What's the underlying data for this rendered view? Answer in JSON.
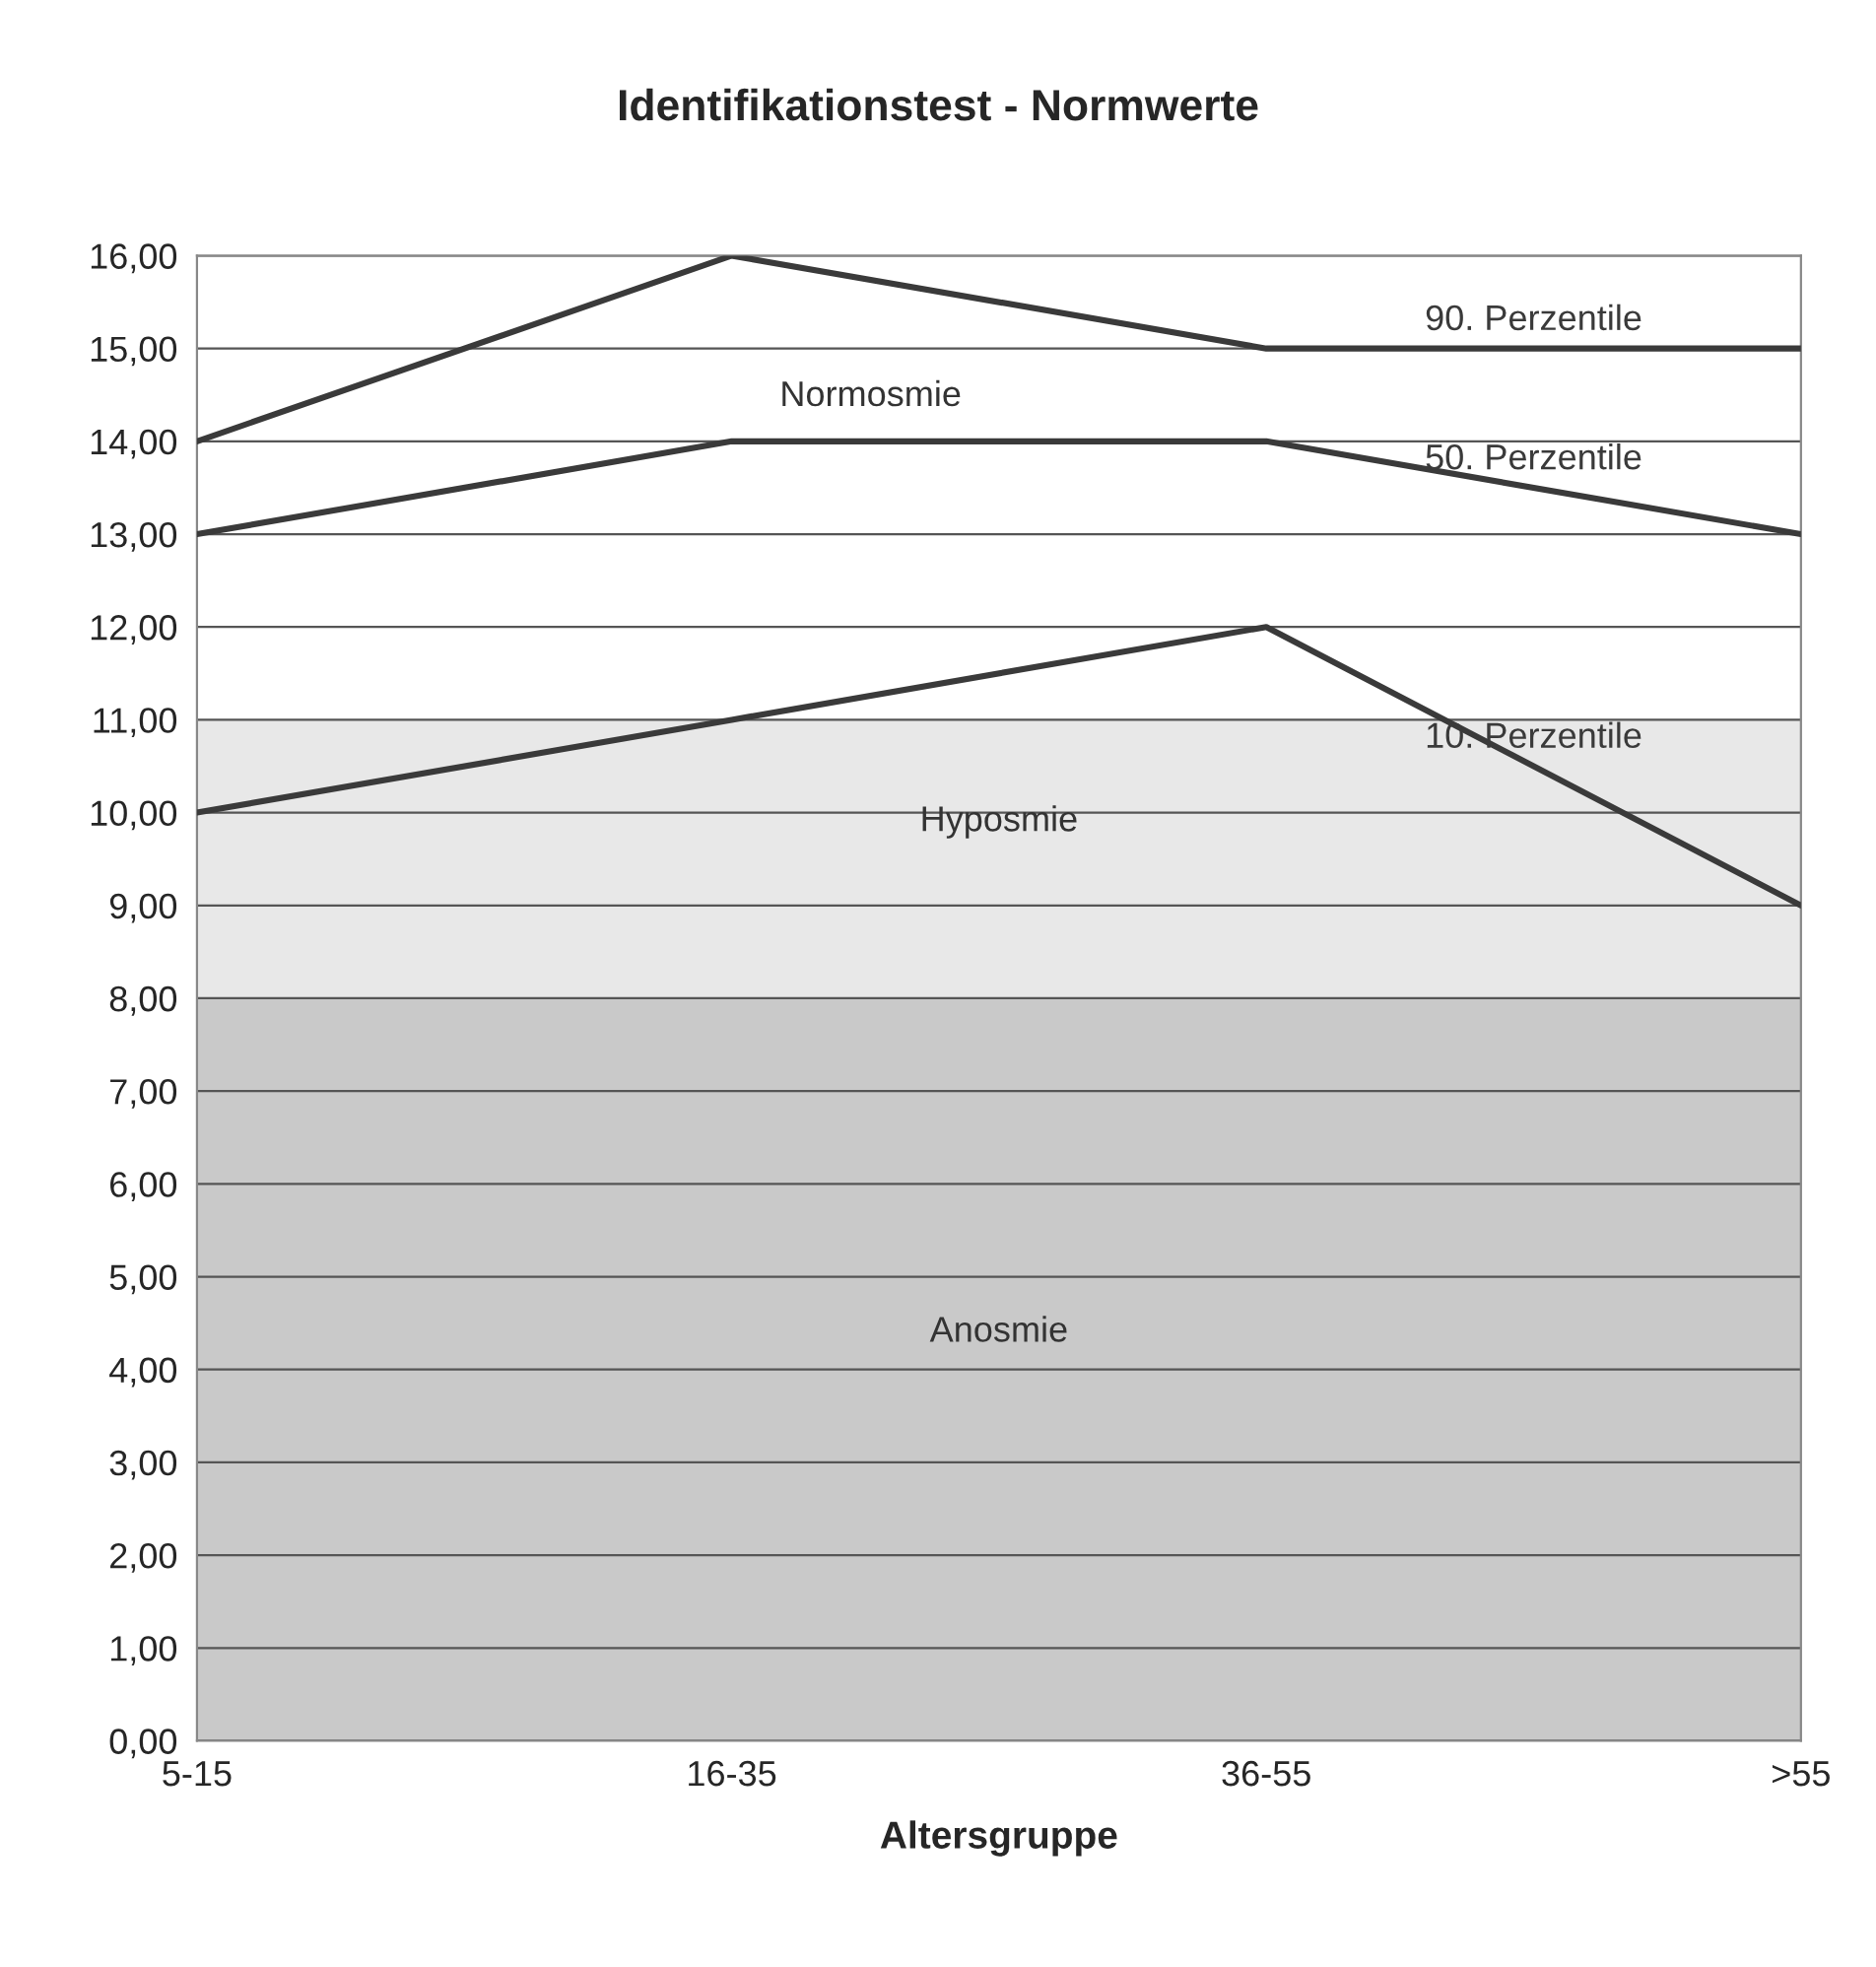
{
  "chart_data": {
    "type": "line",
    "title": "Identifikationstest - Normwerte",
    "xlabel": "Altersgruppe",
    "categories": [
      "5-15",
      "16-35",
      "36-55",
      ">55"
    ],
    "series": [
      {
        "name": "90. Perzentile",
        "color": "#3a3a3a",
        "values": [
          14,
          16,
          15,
          15
        ]
      },
      {
        "name": "50. Perzentile",
        "color": "#3a3a3a",
        "values": [
          13,
          14,
          14,
          13
        ]
      },
      {
        "name": "10. Perzentile",
        "color": "#3a3a3a",
        "values": [
          10,
          11,
          12,
          9
        ]
      }
    ],
    "bands": [
      {
        "axis": "y",
        "from": 0,
        "to": 8,
        "label": "Anosmie",
        "color": "#c9c9c9"
      },
      {
        "axis": "y",
        "from": 8,
        "to": 11,
        "label": "Hyposmie",
        "color": "#e8e8e8"
      }
    ],
    "annotations": [
      "Normosmie"
    ],
    "ylim": [
      0,
      16
    ],
    "yticks": [
      {
        "value": 0,
        "label": "0,00"
      },
      {
        "value": 1,
        "label": "1,00"
      },
      {
        "value": 2,
        "label": "2,00"
      },
      {
        "value": 3,
        "label": "3,00"
      },
      {
        "value": 4,
        "label": "4,00"
      },
      {
        "value": 5,
        "label": "5,00"
      },
      {
        "value": 6,
        "label": "6,00"
      },
      {
        "value": 7,
        "label": "7,00"
      },
      {
        "value": 8,
        "label": "8,00"
      },
      {
        "value": 9,
        "label": "9,00"
      },
      {
        "value": 10,
        "label": "10,00"
      },
      {
        "value": 11,
        "label": "11,00"
      },
      {
        "value": 12,
        "label": "12,00"
      },
      {
        "value": 13,
        "label": "13,00"
      },
      {
        "value": 14,
        "label": "14,00"
      },
      {
        "value": 15,
        "label": "15,00"
      },
      {
        "value": 16,
        "label": "16,00"
      }
    ],
    "grid": "y",
    "legend": false,
    "marker": "none",
    "line_style": "solid"
  }
}
